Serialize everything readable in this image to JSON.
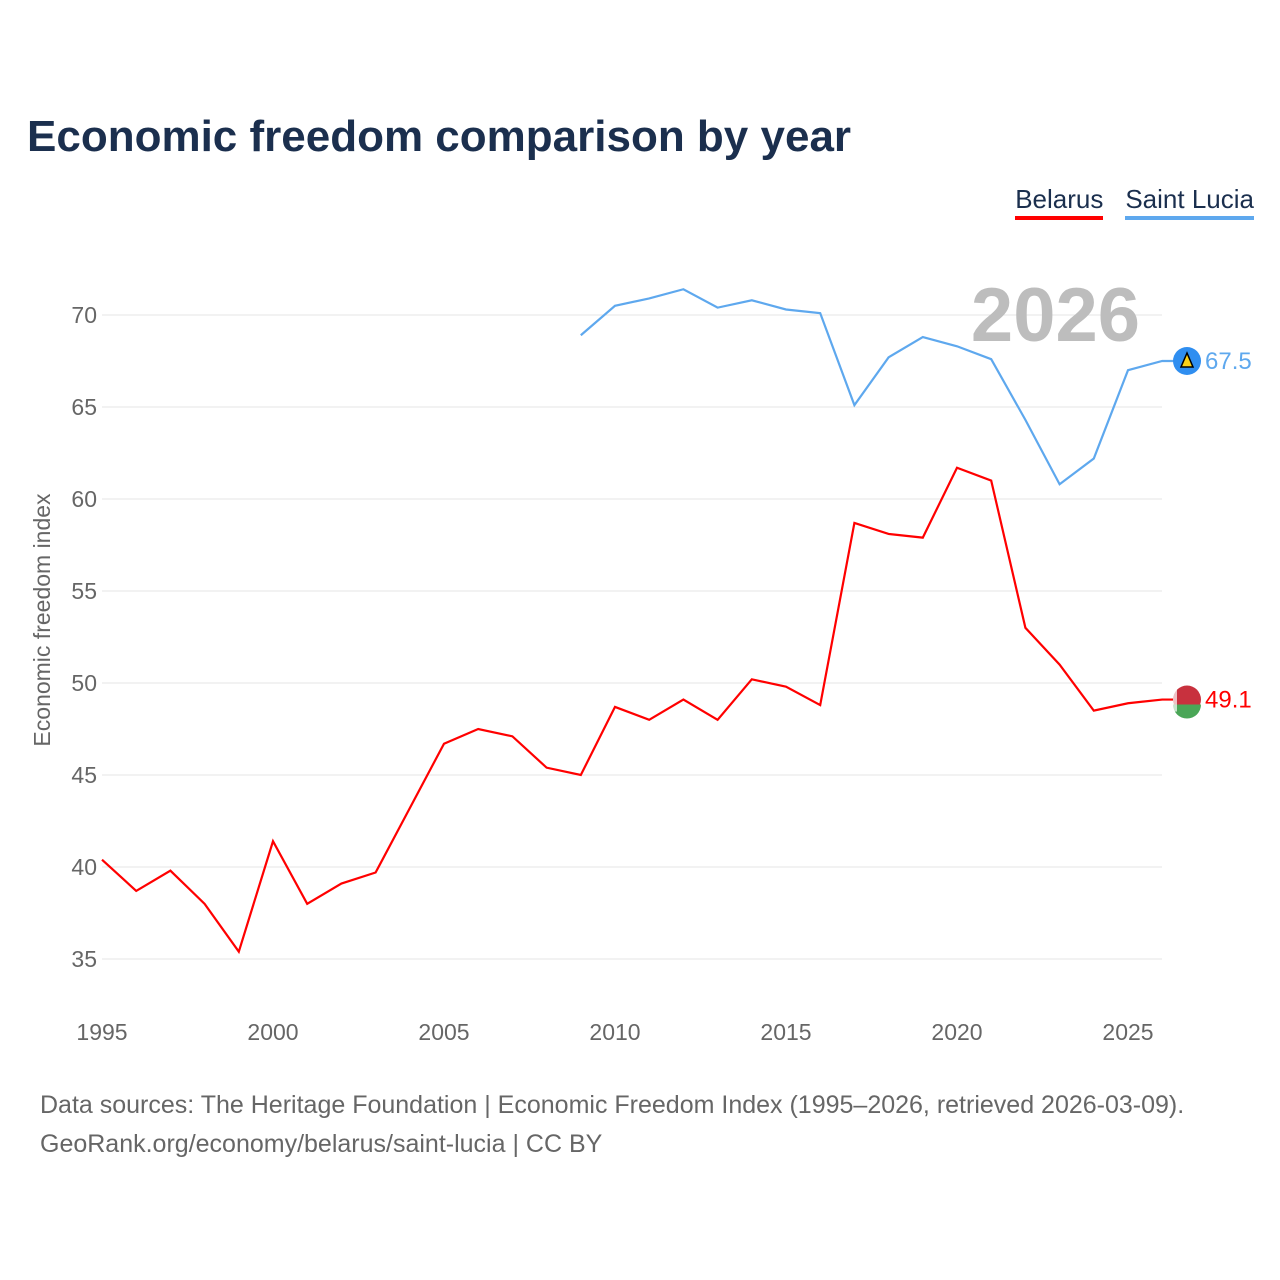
{
  "chart_data": {
    "type": "line",
    "title": "Economic freedom comparison by year",
    "xlabel": "",
    "ylabel": "Economic freedom index",
    "xlim": [
      1995,
      2026
    ],
    "ylim": [
      33,
      73
    ],
    "x_ticks": [
      1995,
      2000,
      2005,
      2010,
      2015,
      2020,
      2025
    ],
    "y_ticks": [
      35,
      40,
      45,
      50,
      55,
      60,
      65,
      70
    ],
    "grid": true,
    "legend_position": "top-right",
    "watermark_year": "2026",
    "series": [
      {
        "name": "Belarus",
        "color": "#ff0000",
        "end_label": "49.1",
        "x": [
          1995,
          1996,
          1997,
          1998,
          1999,
          2000,
          2001,
          2002,
          2003,
          2004,
          2005,
          2006,
          2007,
          2008,
          2009,
          2010,
          2011,
          2012,
          2013,
          2014,
          2015,
          2016,
          2017,
          2018,
          2019,
          2020,
          2021,
          2022,
          2023,
          2024,
          2025,
          2026
        ],
        "values": [
          40.4,
          38.7,
          39.8,
          38.0,
          35.4,
          41.4,
          38.0,
          39.1,
          39.7,
          43.2,
          46.7,
          47.5,
          47.1,
          45.4,
          45.0,
          48.7,
          48.0,
          49.1,
          48.0,
          50.2,
          49.8,
          48.8,
          58.7,
          58.1,
          57.9,
          61.7,
          61.0,
          53.0,
          51.0,
          48.5,
          48.9,
          49.1
        ]
      },
      {
        "name": "Saint Lucia",
        "color": "#5ea8ee",
        "end_label": "67.5",
        "x": [
          2009,
          2010,
          2011,
          2012,
          2013,
          2014,
          2015,
          2016,
          2017,
          2018,
          2019,
          2020,
          2021,
          2022,
          2023,
          2024,
          2025,
          2026
        ],
        "values": [
          68.9,
          70.5,
          70.9,
          71.4,
          70.4,
          70.8,
          70.3,
          70.1,
          65.1,
          67.7,
          68.8,
          68.3,
          67.6,
          64.3,
          60.8,
          62.2,
          67.0,
          67.5
        ]
      }
    ]
  },
  "source": {
    "line1": "Data sources: The Heritage Foundation | Economic Freedom Index (1995–2026, retrieved 2026-03-09).",
    "line2": "GeoRank.org/economy/belarus/saint-lucia | CC BY"
  }
}
